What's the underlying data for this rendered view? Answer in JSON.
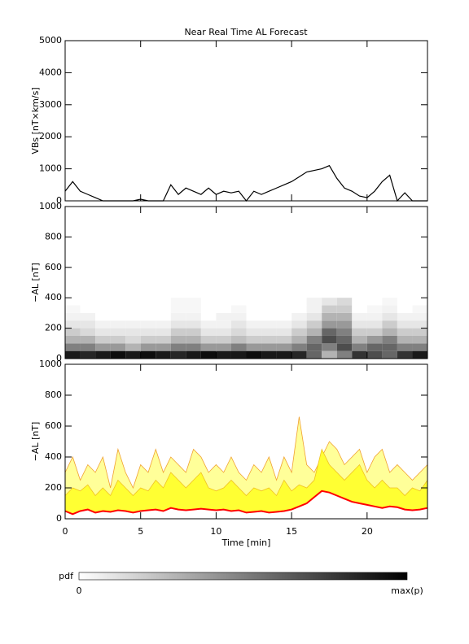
{
  "chart_data": [
    {
      "type": "line",
      "title": "Near Real Time AL Forecast",
      "ylabel": "VBs [nT×km/s]",
      "x": [
        0,
        0.5,
        1,
        1.5,
        2,
        2.5,
        3,
        3.5,
        4,
        4.5,
        5,
        5.5,
        6,
        6.5,
        7,
        7.5,
        8,
        8.5,
        9,
        9.5,
        10,
        10.5,
        11,
        11.5,
        12,
        12.5,
        13,
        13.5,
        14,
        14.5,
        15,
        15.5,
        16,
        16.5,
        17,
        17.5,
        18,
        18.5,
        19,
        19.5,
        20,
        20.5,
        21,
        21.5,
        22,
        22.5,
        23,
        23.5,
        24
      ],
      "xlim": [
        0,
        24
      ],
      "ylim": [
        0,
        5000
      ],
      "yticks": [
        0,
        1000,
        2000,
        3000,
        4000,
        5000
      ],
      "series": [
        {
          "color": "#000000",
          "values": [
            300,
            600,
            300,
            200,
            100,
            0,
            0,
            0,
            0,
            0,
            50,
            0,
            0,
            0,
            500,
            200,
            400,
            300,
            200,
            400,
            200,
            300,
            250,
            300,
            0,
            300,
            200,
            300,
            400,
            500,
            600,
            750,
            900,
            950,
            1000,
            1100,
            700,
            400,
            300,
            150,
            100,
            300,
            600,
            800,
            0,
            250,
            0,
            0,
            0
          ]
        }
      ]
    },
    {
      "type": "heatmap",
      "ylabel": "−AL [nT]",
      "xlim": [
        0,
        24
      ],
      "ylim": [
        0,
        1000
      ],
      "yticks": [
        0,
        200,
        400,
        600,
        800,
        1000
      ],
      "x_bins": [
        0,
        1,
        2,
        3,
        4,
        5,
        6,
        7,
        8,
        9,
        10,
        11,
        12,
        13,
        14,
        15,
        16,
        17,
        18,
        19,
        20,
        21,
        22,
        23,
        24
      ],
      "y_bins": [
        0,
        50,
        100,
        150,
        200,
        250,
        300,
        350,
        400
      ],
      "values": [
        [
          0.9,
          0.85,
          0.9,
          0.95,
          0.9,
          0.95,
          0.9,
          0.85,
          0.9,
          0.95,
          0.9,
          0.9,
          0.95,
          0.9,
          0.9,
          0.85,
          0.6,
          0.3,
          0.5,
          0.8,
          0.7,
          0.6,
          0.8,
          0.9
        ],
        [
          0.5,
          0.5,
          0.4,
          0.4,
          0.3,
          0.4,
          0.4,
          0.5,
          0.5,
          0.4,
          0.4,
          0.5,
          0.4,
          0.4,
          0.4,
          0.5,
          0.6,
          0.5,
          0.7,
          0.5,
          0.6,
          0.6,
          0.5,
          0.5
        ],
        [
          0.3,
          0.3,
          0.2,
          0.2,
          0.15,
          0.2,
          0.2,
          0.3,
          0.3,
          0.2,
          0.2,
          0.25,
          0.2,
          0.2,
          0.2,
          0.3,
          0.5,
          0.7,
          0.6,
          0.3,
          0.4,
          0.5,
          0.3,
          0.3
        ],
        [
          0.2,
          0.15,
          0.1,
          0.1,
          0.1,
          0.1,
          0.1,
          0.2,
          0.2,
          0.1,
          0.1,
          0.15,
          0.1,
          0.1,
          0.1,
          0.2,
          0.3,
          0.6,
          0.5,
          0.2,
          0.2,
          0.3,
          0.2,
          0.2
        ],
        [
          0.1,
          0.1,
          0.05,
          0.05,
          0.05,
          0.05,
          0.05,
          0.1,
          0.1,
          0.05,
          0.05,
          0.1,
          0.05,
          0.05,
          0.05,
          0.1,
          0.2,
          0.4,
          0.4,
          0.1,
          0.1,
          0.2,
          0.1,
          0.1
        ],
        [
          0.05,
          0.05,
          0,
          0,
          0,
          0,
          0,
          0.05,
          0.05,
          0,
          0.05,
          0.05,
          0,
          0,
          0,
          0.05,
          0.1,
          0.3,
          0.3,
          0.05,
          0.05,
          0.1,
          0.05,
          0.05
        ],
        [
          0.03,
          0,
          0,
          0,
          0,
          0,
          0,
          0.03,
          0.03,
          0,
          0,
          0.03,
          0,
          0,
          0,
          0,
          0.05,
          0.2,
          0.2,
          0,
          0.03,
          0.05,
          0,
          0.03
        ],
        [
          0,
          0,
          0,
          0,
          0,
          0,
          0,
          0.03,
          0.03,
          0,
          0,
          0,
          0,
          0,
          0,
          0,
          0.05,
          0.1,
          0.15,
          0,
          0,
          0.03,
          0,
          0
        ]
      ],
      "colorbar": {
        "label": "pdf",
        "min_label": "0",
        "max_label": "max(p)"
      }
    },
    {
      "type": "area",
      "ylabel": "−AL [nT]",
      "xlabel": "Time [min]",
      "x": [
        0,
        0.5,
        1,
        1.5,
        2,
        2.5,
        3,
        3.5,
        4,
        4.5,
        5,
        5.5,
        6,
        6.5,
        7,
        7.5,
        8,
        8.5,
        9,
        9.5,
        10,
        10.5,
        11,
        11.5,
        12,
        12.5,
        13,
        13.5,
        14,
        14.5,
        15,
        15.5,
        16,
        16.5,
        17,
        17.5,
        18,
        18.5,
        19,
        19.5,
        20,
        20.5,
        21,
        21.5,
        22,
        22.5,
        23,
        23.5,
        24
      ],
      "xlim": [
        0,
        24
      ],
      "xticks": [
        0,
        5,
        10,
        15,
        20
      ],
      "ylim": [
        0,
        1000
      ],
      "yticks": [
        0,
        200,
        400,
        600,
        800,
        1000
      ],
      "series": [
        {
          "color": "#ffff99",
          "edge": "#f0a030",
          "values": [
            300,
            400,
            250,
            350,
            300,
            400,
            200,
            450,
            300,
            200,
            350,
            300,
            450,
            300,
            400,
            350,
            300,
            450,
            400,
            300,
            350,
            300,
            400,
            300,
            250,
            350,
            300,
            400,
            250,
            400,
            300,
            660,
            350,
            300,
            400,
            500,
            450,
            350,
            400,
            450,
            300,
            400,
            450,
            300,
            350,
            300,
            250,
            300,
            350
          ]
        },
        {
          "color": "#ffff33",
          "edge": "#f0c020",
          "values": [
            150,
            200,
            180,
            220,
            150,
            200,
            150,
            250,
            200,
            150,
            200,
            180,
            250,
            200,
            300,
            250,
            200,
            250,
            300,
            200,
            180,
            200,
            250,
            200,
            150,
            200,
            180,
            200,
            150,
            250,
            180,
            220,
            200,
            250,
            450,
            350,
            300,
            250,
            300,
            350,
            250,
            200,
            250,
            200,
            200,
            150,
            200,
            180,
            250
          ]
        },
        {
          "color": "#ff0000",
          "values": [
            50,
            30,
            50,
            60,
            40,
            50,
            45,
            55,
            50,
            40,
            50,
            55,
            60,
            50,
            70,
            60,
            55,
            60,
            65,
            60,
            55,
            60,
            50,
            55,
            40,
            45,
            50,
            40,
            45,
            50,
            60,
            80,
            100,
            140,
            180,
            170,
            150,
            130,
            110,
            100,
            90,
            80,
            70,
            80,
            75,
            60,
            55,
            60,
            70
          ]
        }
      ]
    }
  ]
}
